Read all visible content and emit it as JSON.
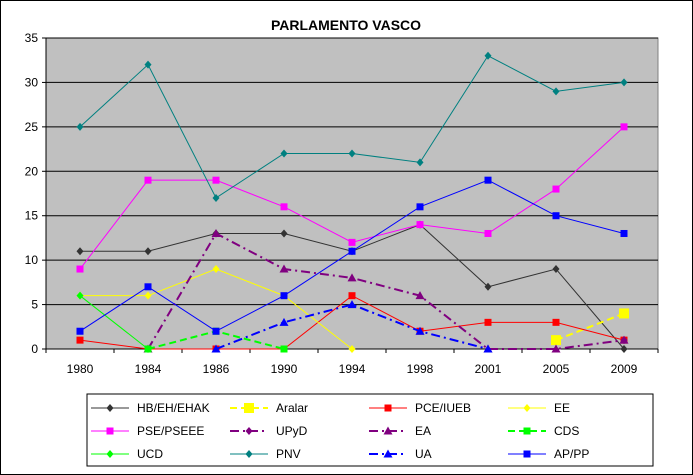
{
  "chart_data": {
    "type": "line",
    "title": "PARLAMENTO VASCO",
    "xlabel": "",
    "ylabel": "",
    "categories": [
      "1980",
      "1984",
      "1986",
      "1990",
      "1994",
      "1998",
      "2001",
      "2005",
      "2009"
    ],
    "ylim": [
      0,
      35
    ],
    "yticks": [
      0,
      5,
      10,
      15,
      20,
      25,
      30,
      35
    ],
    "grid": "horizontal",
    "plot_background": "#c0c0c0",
    "legend_position": "bottom",
    "series": [
      {
        "name": "HB/EH/EHAK",
        "color": "#333333",
        "marker": "diamond",
        "dash": "solid",
        "values": [
          11,
          11,
          13,
          13,
          11,
          14,
          7,
          9,
          0
        ]
      },
      {
        "name": "Aralar",
        "color": "#ffff00",
        "marker": "square",
        "dash": "dash",
        "values": [
          null,
          null,
          null,
          null,
          null,
          null,
          null,
          1,
          4
        ]
      },
      {
        "name": "PCE/IUEB",
        "color": "#ff0000",
        "marker": "square",
        "dash": "solid",
        "values": [
          1,
          0,
          0,
          0,
          6,
          2,
          3,
          3,
          1
        ]
      },
      {
        "name": "EE",
        "color": "#ffff00",
        "marker": "diamond",
        "dash": "solid",
        "values": [
          6,
          6,
          9,
          6,
          0,
          null,
          null,
          null,
          null
        ]
      },
      {
        "name": "PSE/PSEEE",
        "color": "#ff00ff",
        "marker": "square",
        "dash": "solid",
        "values": [
          9,
          19,
          19,
          16,
          12,
          14,
          13,
          18,
          25
        ]
      },
      {
        "name": "UPyD",
        "color": "#800080",
        "marker": "diamond",
        "dash": "dashdot",
        "values": [
          null,
          null,
          null,
          null,
          null,
          null,
          null,
          null,
          1
        ]
      },
      {
        "name": "EA",
        "color": "#800080",
        "marker": "triangle",
        "dash": "dashdot",
        "values": [
          null,
          0,
          13,
          9,
          8,
          6,
          0,
          0,
          1
        ]
      },
      {
        "name": "CDS",
        "color": "#00ff00",
        "marker": "square",
        "dash": "dash",
        "values": [
          null,
          0,
          2,
          0,
          null,
          null,
          null,
          null,
          null
        ]
      },
      {
        "name": "UCD",
        "color": "#00ff00",
        "marker": "diamond",
        "dash": "solid",
        "values": [
          6,
          0,
          null,
          null,
          null,
          null,
          null,
          null,
          null
        ]
      },
      {
        "name": "PNV",
        "color": "#008080",
        "marker": "diamond",
        "dash": "solid",
        "values": [
          25,
          32,
          17,
          22,
          22,
          21,
          33,
          29,
          30
        ]
      },
      {
        "name": "UA",
        "color": "#0000ff",
        "marker": "triangle",
        "dash": "dashdot",
        "values": [
          null,
          null,
          0,
          3,
          5,
          2,
          0,
          null,
          null
        ]
      },
      {
        "name": "AP/PP",
        "color": "#0000ff",
        "marker": "square",
        "dash": "solid",
        "values": [
          2,
          7,
          2,
          6,
          11,
          16,
          19,
          15,
          13
        ]
      }
    ]
  }
}
